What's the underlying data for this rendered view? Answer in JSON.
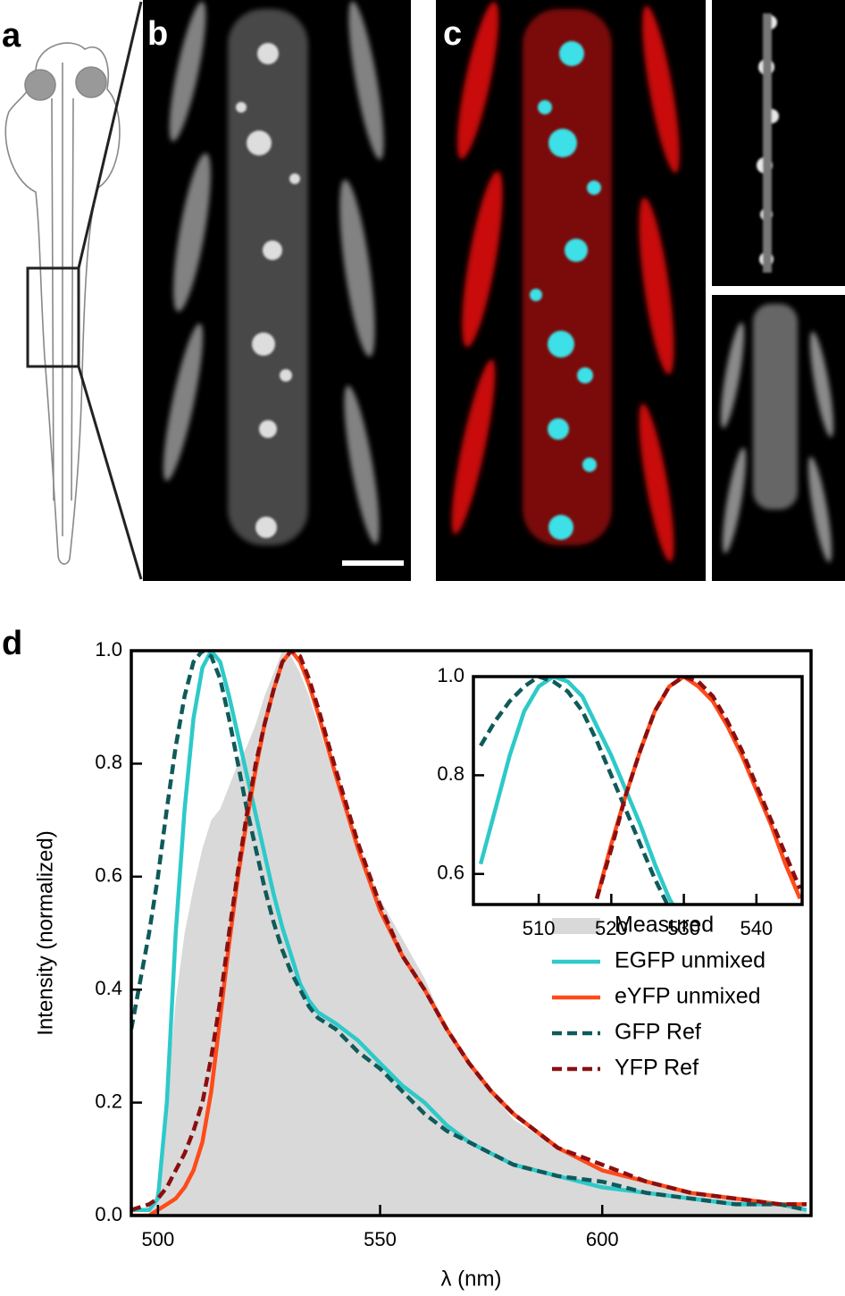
{
  "panels": {
    "a": "a",
    "b": "b",
    "c": "c",
    "d": "d"
  },
  "chart_data": [
    {
      "type": "line",
      "xlabel": "λ (nm)",
      "ylabel": "Intensity (normalized)",
      "xlim": [
        494,
        647
      ],
      "ylim": [
        0,
        1.0
      ],
      "xticks": [
        500,
        550,
        600
      ],
      "yticks": [
        {
          "value": 0,
          "label": "0.0"
        },
        0.2,
        0.4,
        0.6,
        0.8,
        {
          "value": 1.0,
          "label": "1.0"
        }
      ],
      "legend": "lower right",
      "x": [
        494,
        498,
        500,
        502,
        504,
        506,
        508,
        510,
        512,
        514,
        516,
        518,
        520,
        522,
        524,
        526,
        528,
        530,
        532,
        534,
        536,
        540,
        545,
        550,
        555,
        560,
        565,
        570,
        575,
        580,
        590,
        600,
        610,
        620,
        630,
        640,
        646
      ],
      "series": [
        {
          "name": "Measured",
          "color": "#d9d9d9",
          "fill": true,
          "dashed": false,
          "values": [
            0,
            0,
            0.05,
            0.2,
            0.38,
            0.5,
            0.58,
            0.65,
            0.7,
            0.72,
            0.76,
            0.8,
            0.83,
            0.87,
            0.92,
            0.96,
            1.0,
            0.99,
            0.96,
            0.92,
            0.87,
            0.77,
            0.66,
            0.56,
            0.49,
            0.42,
            0.33,
            0.27,
            0.22,
            0.17,
            0.12,
            0.08,
            0.06,
            0.04,
            0.03,
            0.02,
            0.01
          ]
        },
        {
          "name": "EGFP unmixed",
          "color": "#2ec9c9",
          "fill": false,
          "dashed": false,
          "values": [
            0.01,
            0.01,
            0.03,
            0.2,
            0.5,
            0.72,
            0.88,
            0.97,
            1.0,
            0.98,
            0.92,
            0.85,
            0.78,
            0.71,
            0.64,
            0.57,
            0.51,
            0.46,
            0.41,
            0.38,
            0.36,
            0.34,
            0.31,
            0.27,
            0.23,
            0.2,
            0.16,
            0.13,
            0.11,
            0.09,
            0.07,
            0.05,
            0.04,
            0.03,
            0.02,
            0.02,
            0.01
          ]
        },
        {
          "name": "eYFP unmixed",
          "color": "#ff4a1a",
          "fill": false,
          "dashed": false,
          "values": [
            0,
            0,
            0.01,
            0.02,
            0.03,
            0.05,
            0.08,
            0.13,
            0.22,
            0.35,
            0.48,
            0.6,
            0.7,
            0.79,
            0.87,
            0.93,
            0.98,
            1.0,
            0.98,
            0.94,
            0.89,
            0.78,
            0.65,
            0.54,
            0.46,
            0.4,
            0.33,
            0.27,
            0.22,
            0.18,
            0.12,
            0.08,
            0.06,
            0.04,
            0.03,
            0.02,
            0.02
          ]
        },
        {
          "name": "GFP Ref",
          "color": "#0f5a5a",
          "fill": false,
          "dashed": true,
          "values": [
            0.33,
            0.5,
            0.6,
            0.72,
            0.83,
            0.92,
            0.98,
            1.0,
            0.99,
            0.95,
            0.88,
            0.8,
            0.72,
            0.65,
            0.58,
            0.52,
            0.47,
            0.43,
            0.4,
            0.37,
            0.35,
            0.33,
            0.29,
            0.26,
            0.22,
            0.18,
            0.15,
            0.13,
            0.11,
            0.09,
            0.07,
            0.06,
            0.04,
            0.03,
            0.02,
            0.02,
            0.01
          ]
        },
        {
          "name": "YFP Ref",
          "color": "#8b0f0f",
          "fill": false,
          "dashed": true,
          "values": [
            0.01,
            0.02,
            0.03,
            0.05,
            0.08,
            0.11,
            0.15,
            0.2,
            0.28,
            0.38,
            0.5,
            0.61,
            0.71,
            0.8,
            0.87,
            0.93,
            0.98,
            1.0,
            0.99,
            0.95,
            0.9,
            0.79,
            0.66,
            0.55,
            0.46,
            0.4,
            0.33,
            0.27,
            0.22,
            0.18,
            0.12,
            0.09,
            0.06,
            0.04,
            0.03,
            0.02,
            0.02
          ]
        }
      ]
    },
    {
      "type": "line",
      "xlim": [
        501,
        546.3
      ],
      "ylim": [
        0.538,
        1.0
      ],
      "xticks": [
        510,
        520,
        530,
        540
      ],
      "yticks": [
        {
          "value": 0.6,
          "label": "0.6"
        },
        {
          "value": 0.8,
          "label": "0.8"
        },
        {
          "value": 1.0,
          "label": "1.0"
        }
      ],
      "x": [
        502,
        504,
        506,
        508,
        510,
        512,
        514,
        516,
        518,
        520,
        522,
        524,
        526,
        528,
        530,
        532,
        534,
        536,
        538,
        540,
        542,
        544,
        546
      ],
      "series": [
        {
          "color": "#2ec9c9",
          "fill": false,
          "dashed": false,
          "values": [
            0.62,
            0.73,
            0.84,
            0.93,
            0.98,
            1.0,
            0.99,
            0.96,
            0.9,
            0.84,
            0.77,
            0.7,
            0.62,
            0.55,
            0.5,
            null,
            null,
            null,
            null,
            null,
            null,
            null,
            null
          ]
        },
        {
          "color": "#ff4a1a",
          "fill": false,
          "dashed": false,
          "values": [
            null,
            null,
            null,
            null,
            null,
            null,
            null,
            null,
            0.55,
            0.66,
            0.76,
            0.85,
            0.93,
            0.98,
            1.0,
            0.98,
            0.95,
            0.9,
            0.84,
            0.77,
            0.7,
            0.62,
            0.55
          ]
        },
        {
          "color": "#0f5a5a",
          "fill": false,
          "dashed": true,
          "values": [
            0.86,
            0.91,
            0.95,
            0.98,
            1.0,
            0.99,
            0.97,
            0.93,
            0.87,
            0.8,
            0.73,
            0.66,
            0.59,
            0.53,
            null,
            null,
            null,
            null,
            null,
            null,
            null,
            null,
            null
          ]
        },
        {
          "color": "#8b0f0f",
          "fill": false,
          "dashed": true,
          "values": [
            null,
            null,
            null,
            null,
            null,
            null,
            null,
            null,
            0.55,
            0.65,
            0.76,
            0.85,
            0.93,
            0.98,
            1.0,
            0.99,
            0.96,
            0.91,
            0.85,
            0.78,
            0.71,
            0.64,
            0.57
          ]
        }
      ]
    }
  ]
}
